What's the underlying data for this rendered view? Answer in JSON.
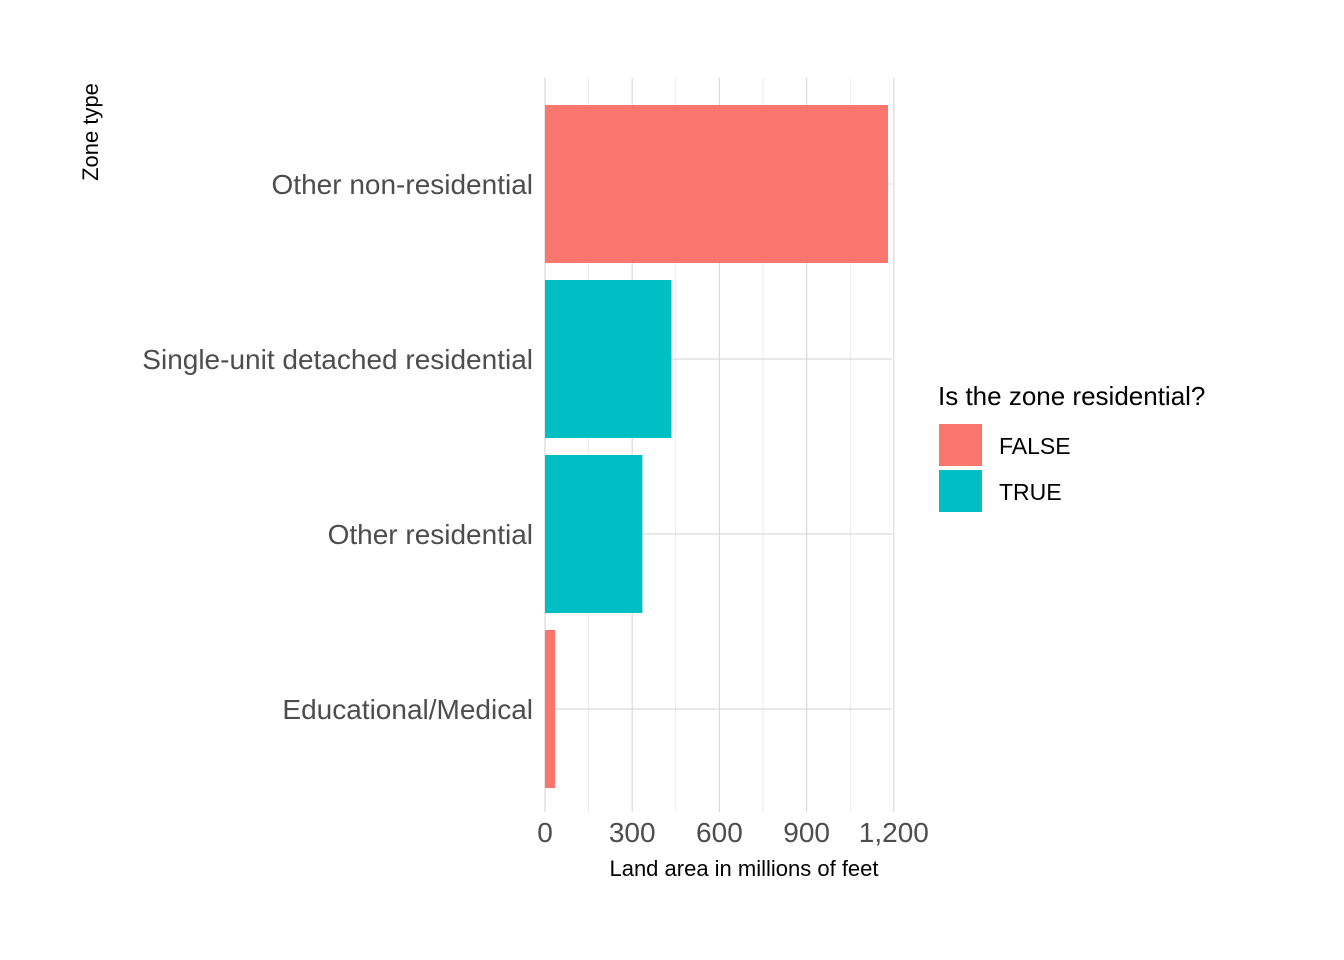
{
  "chart_data": {
    "type": "bar",
    "orientation": "horizontal",
    "categories": [
      "Other non-residential",
      "Single-unit detached residential",
      "Other residential",
      "Educational/Medical"
    ],
    "values": [
      1180,
      435,
      335,
      35
    ],
    "groups": [
      "FALSE",
      "TRUE",
      "TRUE",
      "FALSE"
    ],
    "xlabel": "Land area in millions of feet",
    "ylabel": "Zone type",
    "xlim": [
      0,
      1200
    ],
    "x_ticks": [
      0,
      300,
      600,
      900,
      1200
    ],
    "x_tick_labels": [
      "0",
      "300",
      "600",
      "900",
      "1,200"
    ],
    "grid": true,
    "legend": {
      "title": "Is the zone residential?",
      "position": "right",
      "entries": [
        {
          "label": "FALSE",
          "color": "#F8766D"
        },
        {
          "label": "TRUE",
          "color": "#00BFC4"
        }
      ]
    }
  }
}
